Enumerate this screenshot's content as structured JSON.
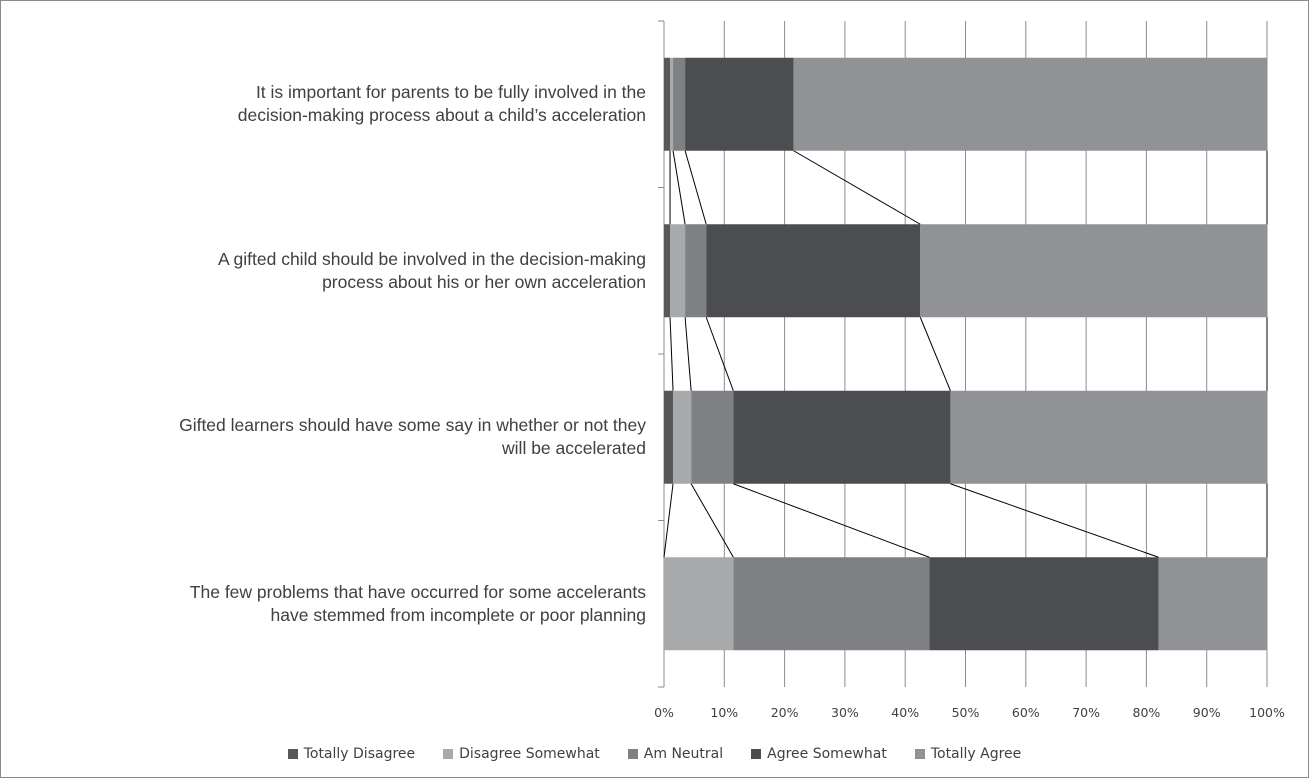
{
  "chart_data": {
    "type": "bar",
    "orientation": "horizontal",
    "stacked": "percent",
    "categories": [
      [
        "It is important for parents to be fully involved in the",
        "decision-making process about a child’s acceleration"
      ],
      [
        "A gifted child should be involved in the decision-making",
        "process about his or her own acceleration"
      ],
      [
        "Gifted learners should have some say in whether or not they",
        "will be accelerated"
      ],
      [
        "The few problems that have occurred for some accelerants",
        "have stemmed from incomplete or poor planning"
      ]
    ],
    "series": [
      {
        "name": "Totally Disagree",
        "color": "#58585a",
        "values": [
          1.0,
          1.0,
          1.5,
          0.0
        ]
      },
      {
        "name": "Disagree Somewhat",
        "color": "#a7a9ab",
        "values": [
          0.5,
          2.5,
          3.0,
          11.5
        ]
      },
      {
        "name": "Am Neutral",
        "color": "#7f8083",
        "values": [
          2.0,
          3.5,
          7.0,
          32.5
        ]
      },
      {
        "name": "Agree Somewhat",
        "color": "#4c4d50",
        "values": [
          18.0,
          35.5,
          36.0,
          38.0
        ]
      },
      {
        "name": "Totally Agree",
        "color": "#919295",
        "values": [
          78.5,
          57.5,
          52.5,
          18.0
        ]
      }
    ],
    "xlim": [
      0,
      100
    ],
    "xticks": [
      "0%",
      "10%",
      "20%",
      "30%",
      "40%",
      "50%",
      "60%",
      "70%",
      "80%",
      "90%",
      "100%"
    ],
    "grid": true,
    "series_lines": true,
    "legend_position": "bottom"
  }
}
